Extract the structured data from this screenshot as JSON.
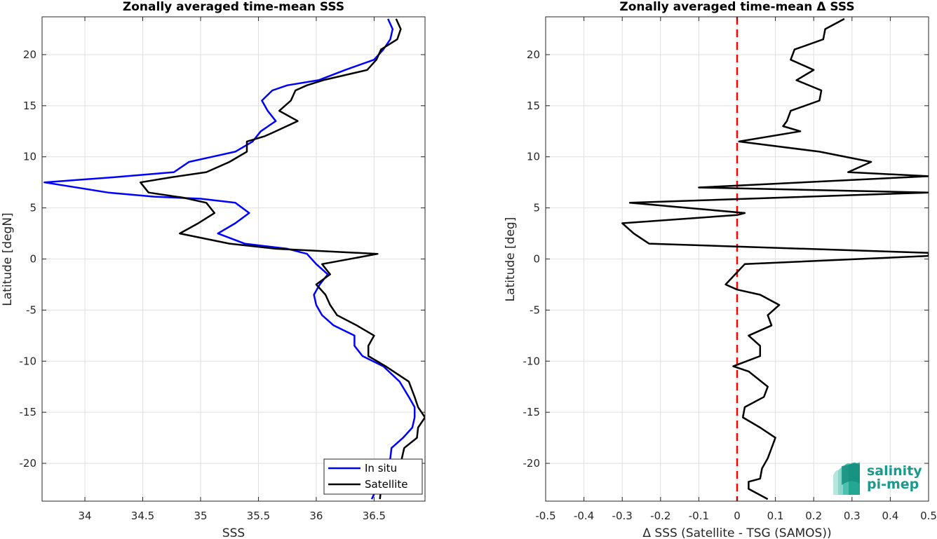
{
  "chart_data": [
    {
      "type": "line",
      "title": "Zonally averaged time-mean SSS",
      "xlabel": "SSS",
      "ylabel": "Latitude [degN]",
      "xlim": [
        33.63,
        36.94
      ],
      "ylim": [
        -23.7,
        23.7
      ],
      "xticks": [
        34,
        34.5,
        35,
        35.5,
        36,
        36.5
      ],
      "xtick_labels": [
        "34",
        "34.5",
        "35",
        "35.5",
        "36",
        "36.5"
      ],
      "yticks": [
        -20,
        -15,
        -10,
        -5,
        0,
        5,
        10,
        15,
        20
      ],
      "ytick_labels": [
        "-20",
        "-15",
        "-10",
        "-5",
        "0",
        "5",
        "10",
        "15",
        "20"
      ],
      "grid": true,
      "legend": "bottom-right",
      "series": [
        {
          "name": "In situ",
          "color": "#0000ff",
          "points": [
            [
              36.62,
              23.5
            ],
            [
              36.66,
              22.5
            ],
            [
              36.64,
              21.5
            ],
            [
              36.58,
              20.5
            ],
            [
              36.5,
              19.5
            ],
            [
              36.25,
              18.5
            ],
            [
              36.02,
              17.5
            ],
            [
              35.75,
              17.0
            ],
            [
              35.62,
              16.5
            ],
            [
              35.53,
              15.5
            ],
            [
              35.58,
              14.5
            ],
            [
              35.65,
              13.5
            ],
            [
              35.52,
              12.5
            ],
            [
              35.45,
              11.5
            ],
            [
              35.3,
              10.5
            ],
            [
              35.1,
              10.0
            ],
            [
              34.9,
              9.5
            ],
            [
              34.77,
              8.5
            ],
            [
              34.25,
              8.0
            ],
            [
              33.65,
              7.5
            ],
            [
              34.2,
              6.5
            ],
            [
              34.6,
              6.1
            ],
            [
              35.0,
              5.9
            ],
            [
              35.3,
              5.5
            ],
            [
              35.42,
              4.5
            ],
            [
              35.3,
              3.5
            ],
            [
              35.15,
              2.5
            ],
            [
              35.38,
              1.5
            ],
            [
              35.75,
              1.0
            ],
            [
              35.92,
              0.5
            ],
            [
              36.0,
              -0.5
            ],
            [
              36.1,
              -1.5
            ],
            [
              36.03,
              -2.5
            ],
            [
              35.98,
              -3.5
            ],
            [
              36.0,
              -4.5
            ],
            [
              36.05,
              -5.5
            ],
            [
              36.15,
              -6.5
            ],
            [
              36.33,
              -7.5
            ],
            [
              36.33,
              -8.5
            ],
            [
              36.4,
              -9.5
            ],
            [
              36.58,
              -10.5
            ],
            [
              36.72,
              -12.0
            ],
            [
              36.8,
              -13.5
            ],
            [
              36.85,
              -14.5
            ],
            [
              36.85,
              -15.5
            ],
            [
              36.83,
              -16.5
            ],
            [
              36.75,
              -17.5
            ],
            [
              36.65,
              -18.5
            ],
            [
              36.64,
              -19.5
            ],
            [
              36.62,
              -20.5
            ],
            [
              36.55,
              -21.5
            ],
            [
              36.52,
              -22.5
            ],
            [
              36.48,
              -23.5
            ]
          ]
        },
        {
          "name": "Satellite",
          "color": "#000000",
          "points": [
            [
              36.69,
              23.5
            ],
            [
              36.73,
              22.5
            ],
            [
              36.7,
              21.5
            ],
            [
              36.56,
              20.5
            ],
            [
              36.52,
              19.5
            ],
            [
              36.44,
              18.5
            ],
            [
              36.06,
              17.5
            ],
            [
              35.92,
              17.0
            ],
            [
              35.82,
              16.5
            ],
            [
              35.78,
              15.5
            ],
            [
              35.68,
              14.5
            ],
            [
              35.84,
              13.5
            ],
            [
              35.65,
              12.5
            ],
            [
              35.55,
              12.0
            ],
            [
              35.4,
              11.5
            ],
            [
              35.4,
              10.5
            ],
            [
              35.25,
              9.5
            ],
            [
              35.05,
              8.5
            ],
            [
              34.75,
              8.0
            ],
            [
              34.48,
              7.5
            ],
            [
              34.55,
              6.5
            ],
            [
              34.85,
              6.0
            ],
            [
              35.05,
              5.5
            ],
            [
              35.12,
              4.5
            ],
            [
              34.98,
              3.5
            ],
            [
              34.82,
              2.5
            ],
            [
              35.25,
              1.5
            ],
            [
              35.65,
              1.0
            ],
            [
              36.53,
              0.5
            ],
            [
              36.05,
              -0.5
            ],
            [
              36.12,
              -1.5
            ],
            [
              36.0,
              -2.5
            ],
            [
              36.08,
              -3.5
            ],
            [
              36.12,
              -4.5
            ],
            [
              36.18,
              -5.5
            ],
            [
              36.35,
              -6.5
            ],
            [
              36.5,
              -7.5
            ],
            [
              36.45,
              -8.5
            ],
            [
              36.45,
              -9.5
            ],
            [
              36.6,
              -10.5
            ],
            [
              36.8,
              -12.0
            ],
            [
              36.85,
              -13.5
            ],
            [
              36.88,
              -14.5
            ],
            [
              36.94,
              -15.5
            ],
            [
              36.88,
              -16.5
            ],
            [
              36.87,
              -17.5
            ],
            [
              36.76,
              -18.5
            ],
            [
              36.74,
              -19.5
            ],
            [
              36.72,
              -20.5
            ],
            [
              36.7,
              -21.0
            ],
            [
              36.58,
              -21.5
            ],
            [
              36.56,
              -22.5
            ],
            [
              36.55,
              -23.5
            ]
          ]
        }
      ]
    },
    {
      "type": "line",
      "title": "Zonally averaged time-mean Δ SSS",
      "xlabel": "Δ SSS (Satellite - TSG (SAMOS))",
      "ylabel": "Latitude [deg]",
      "xlim": [
        -0.5,
        0.5
      ],
      "ylim": [
        -23.7,
        23.7
      ],
      "xticks": [
        -0.5,
        -0.4,
        -0.3,
        -0.2,
        -0.1,
        0,
        0.1,
        0.2,
        0.3,
        0.4,
        0.5
      ],
      "xtick_labels": [
        "-0.5",
        "-0.4",
        "-0.3",
        "-0.2",
        "-0.1",
        "0",
        "0.1",
        "0.2",
        "0.3",
        "0.4",
        "0.5"
      ],
      "yticks": [
        -20,
        -15,
        -10,
        -5,
        0,
        5,
        10,
        15,
        20
      ],
      "ytick_labels": [
        "-20",
        "-15",
        "-10",
        "-5",
        "0",
        "5",
        "10",
        "15",
        "20"
      ],
      "grid": true,
      "reference_line": {
        "x": 0,
        "color": "#ff0000",
        "style": "dashed"
      },
      "series": [
        {
          "color": "#000000",
          "points": [
            [
              0.28,
              23.5
            ],
            [
              0.23,
              22.5
            ],
            [
              0.225,
              21.5
            ],
            [
              0.15,
              20.5
            ],
            [
              0.14,
              19.5
            ],
            [
              0.2,
              18.5
            ],
            [
              0.155,
              17.5
            ],
            [
              0.22,
              16.5
            ],
            [
              0.215,
              15.5
            ],
            [
              0.14,
              14.5
            ],
            [
              0.13,
              13.5
            ],
            [
              0.12,
              13.0
            ],
            [
              0.165,
              12.5
            ],
            [
              0.005,
              11.5
            ],
            [
              0.215,
              10.5
            ],
            [
              0.35,
              9.5
            ],
            [
              0.29,
              8.5
            ],
            [
              0.5,
              8.1
            ],
            [
              0.5,
              8.1
            ],
            [
              -0.1,
              7.0
            ],
            [
              0.5,
              6.5
            ],
            [
              -0.28,
              5.5
            ],
            [
              0.02,
              4.5
            ],
            [
              0.0,
              4.3
            ],
            [
              -0.3,
              3.5
            ],
            [
              -0.27,
              2.5
            ],
            [
              -0.23,
              1.5
            ],
            [
              0.5,
              0.6
            ],
            [
              0.5,
              0.3
            ],
            [
              0.02,
              -0.5
            ],
            [
              -0.03,
              -2.5
            ],
            [
              0.0,
              -3.0
            ],
            [
              0.06,
              -3.5
            ],
            [
              0.11,
              -4.5
            ],
            [
              0.08,
              -5.5
            ],
            [
              0.09,
              -6.5
            ],
            [
              0.03,
              -7.5
            ],
            [
              0.06,
              -8.5
            ],
            [
              0.06,
              -9.5
            ],
            [
              -0.01,
              -10.5
            ],
            [
              0.03,
              -11.0
            ],
            [
              0.08,
              -12.5
            ],
            [
              0.07,
              -13.5
            ],
            [
              0.02,
              -14.5
            ],
            [
              0.015,
              -15.5
            ],
            [
              0.06,
              -16.5
            ],
            [
              0.1,
              -17.5
            ],
            [
              0.08,
              -19.5
            ],
            [
              0.065,
              -20.5
            ],
            [
              0.06,
              -21.5
            ],
            [
              0.03,
              -21.8
            ],
            [
              0.03,
              -22.5
            ],
            [
              0.08,
              -23.5
            ]
          ]
        }
      ]
    }
  ],
  "legend": {
    "items": [
      "In situ",
      "Satellite"
    ]
  },
  "logo": {
    "line1": "salinity",
    "line2": "pi-mep"
  }
}
